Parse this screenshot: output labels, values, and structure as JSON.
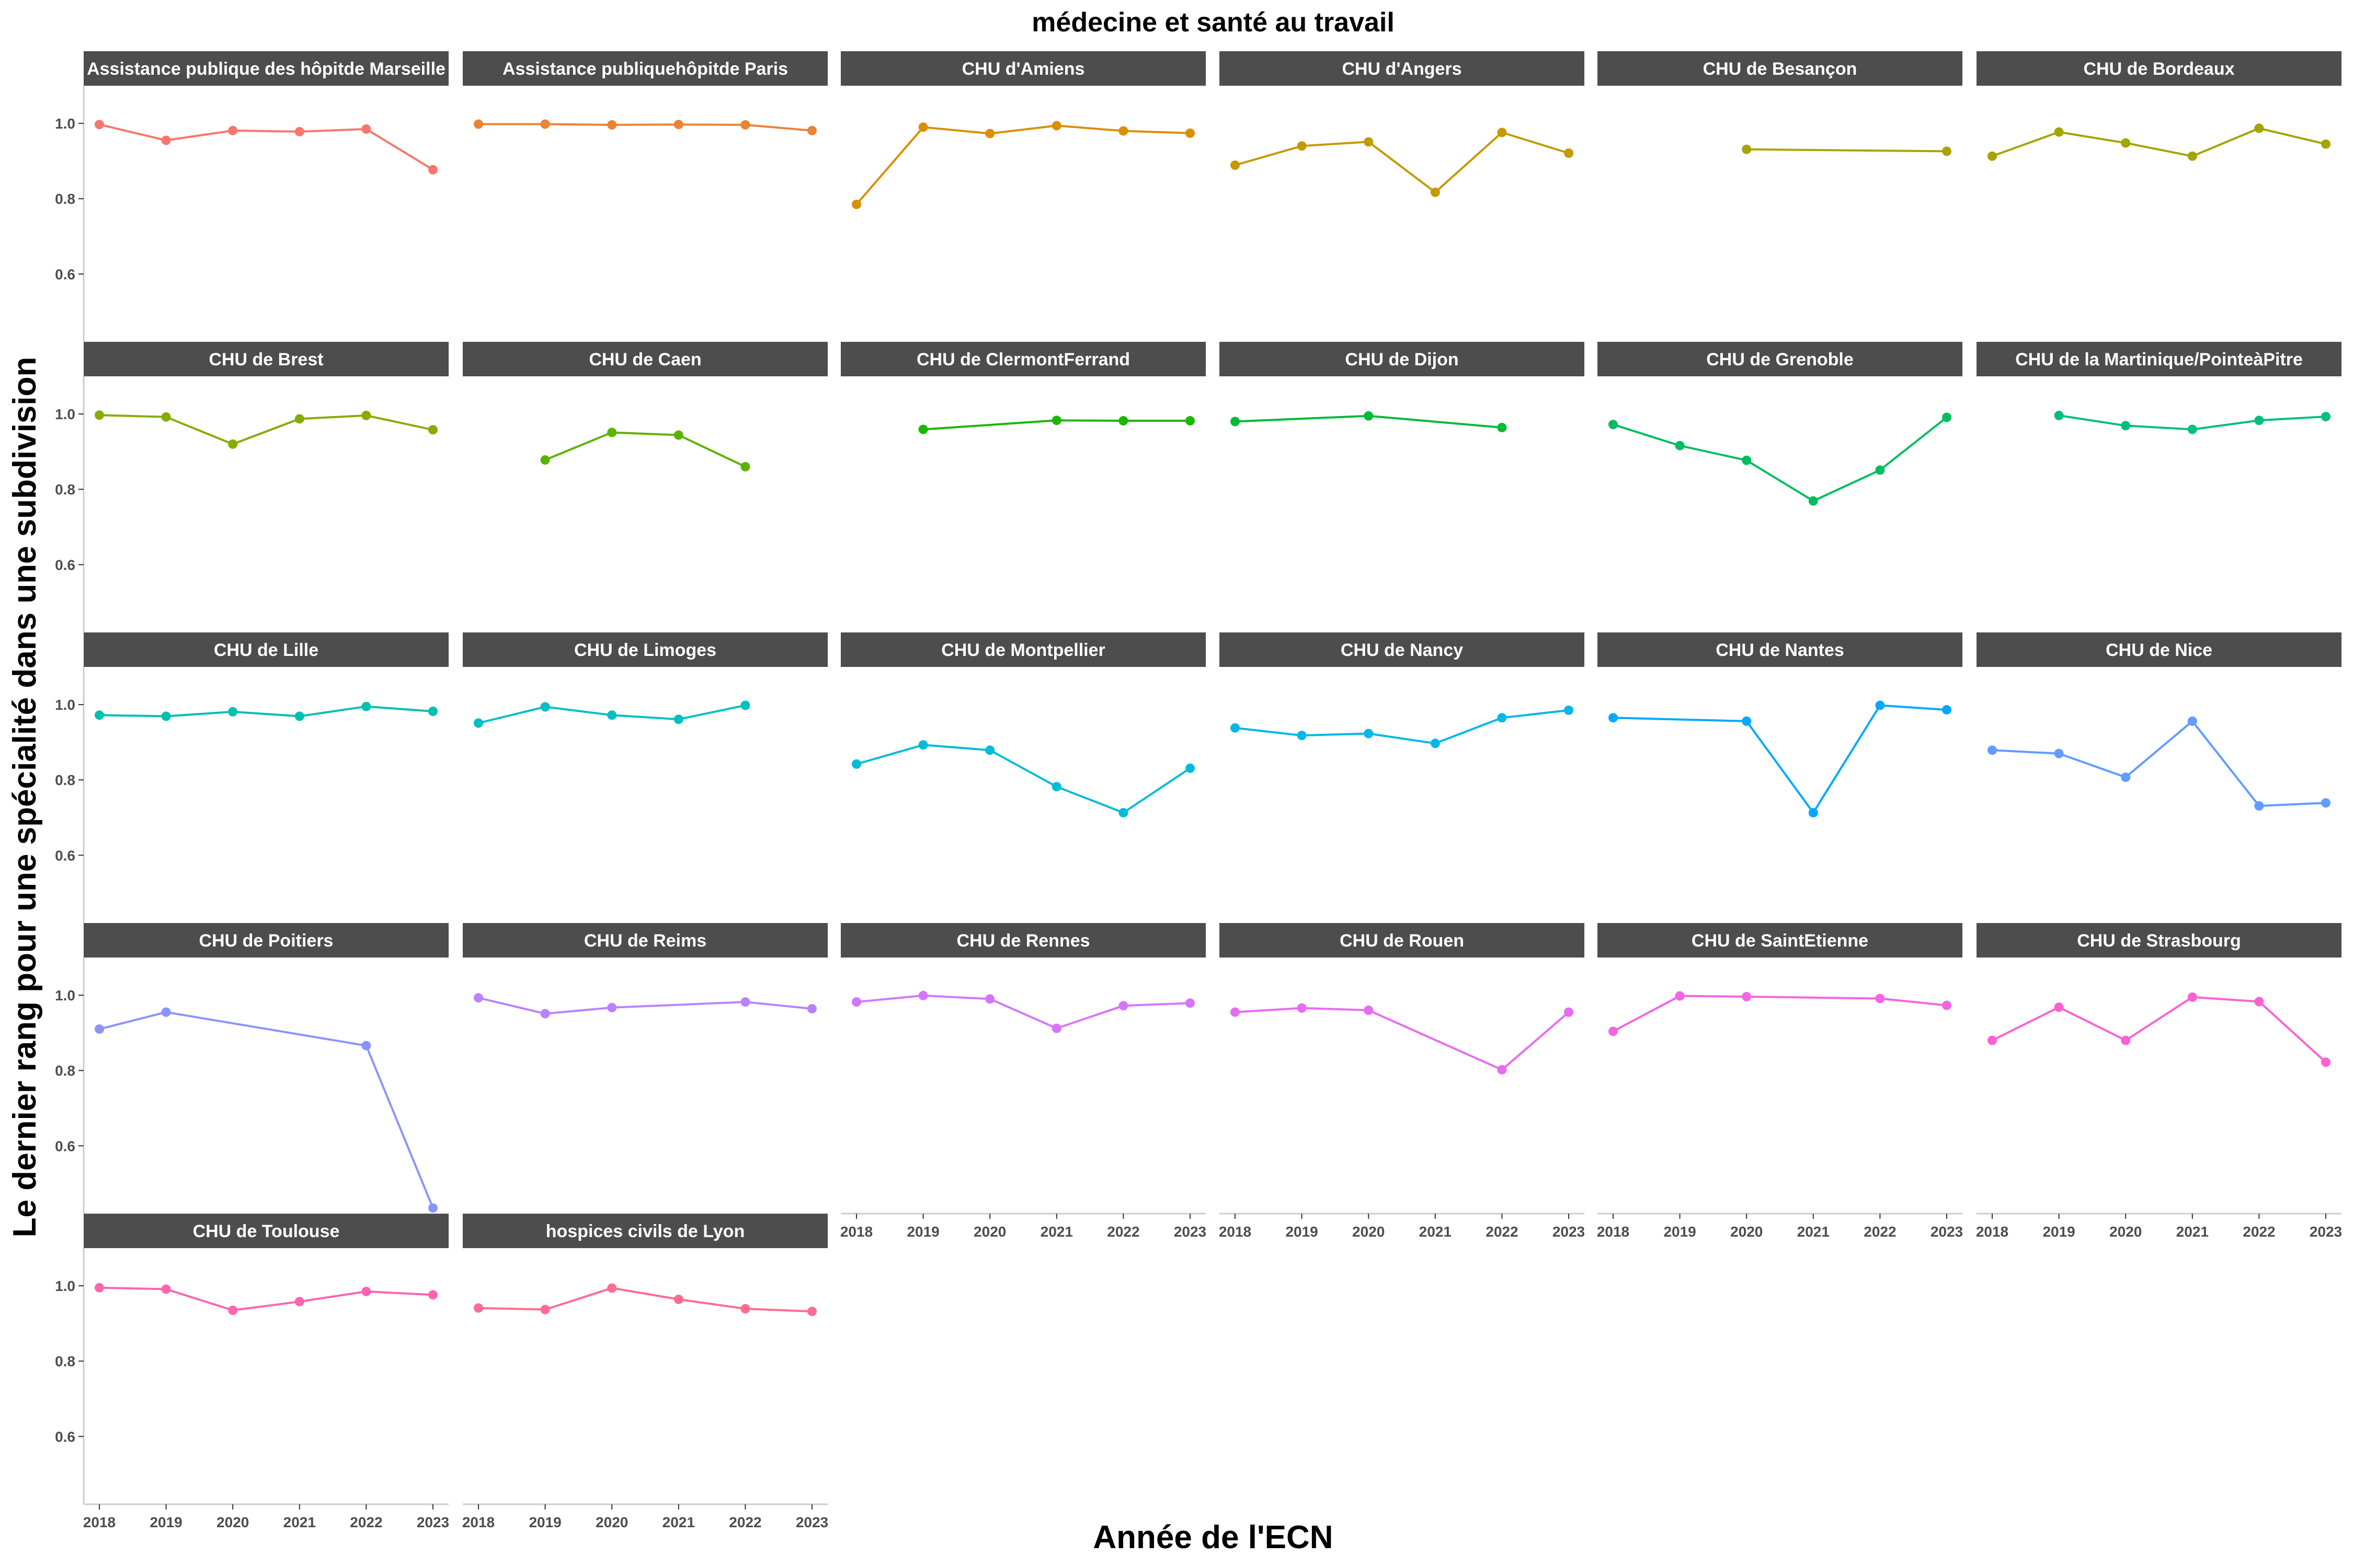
{
  "chart_data": {
    "type": "line",
    "title": "médecine et santé au travail",
    "xlabel": "Année de l'ECN",
    "ylabel": "Le dernier rang pour une spécialité dans une subdivision",
    "x": [
      2018,
      2019,
      2020,
      2021,
      2022,
      2023
    ],
    "ylim": [
      0.42,
      1.1
    ],
    "yticks": [
      0.6,
      0.8,
      1.0
    ],
    "ytick_labels": [
      "0.6",
      "0.8",
      "1.0"
    ],
    "grid": false,
    "legend": "none",
    "panels": [
      {
        "name": "Assistance publique des hôpitde Marseille",
        "color": "#F8766D",
        "values": [
          0.997,
          0.955,
          0.981,
          0.978,
          0.985,
          0.877
        ]
      },
      {
        "name": "Assistance publiquehôpitde Paris",
        "color": "#EB8335",
        "values": [
          0.998,
          0.998,
          0.996,
          0.997,
          0.996,
          0.981
        ]
      },
      {
        "name": "CHU d'Amiens",
        "color": "#DA8F00",
        "values": [
          0.785,
          0.99,
          0.973,
          0.994,
          0.98,
          0.974
        ]
      },
      {
        "name": "CHU d'Angers",
        "color": "#C49A00",
        "values": [
          0.889,
          0.94,
          0.951,
          0.817,
          0.976,
          0.921
        ]
      },
      {
        "name": "CHU de Besançon",
        "color": "#A9A400",
        "values": [
          null,
          null,
          0.931,
          null,
          null,
          0.926
        ]
      },
      {
        "name": "CHU de Bordeaux",
        "color": "#A3A500",
        "values": [
          0.913,
          0.977,
          0.948,
          0.913,
          0.987,
          0.945
        ]
      },
      {
        "name": "CHU de Brest",
        "color": "#86AC00",
        "values": [
          0.997,
          0.992,
          0.92,
          0.987,
          0.996,
          0.958
        ]
      },
      {
        "name": "CHU de Caen",
        "color": "#5BB300",
        "values": [
          null,
          0.878,
          0.951,
          0.944,
          0.86,
          null
        ]
      },
      {
        "name": "CHU de ClermontFerrand",
        "color": "#1AB700",
        "values": [
          null,
          0.959,
          null,
          0.983,
          0.982,
          0.982
        ]
      },
      {
        "name": "CHU de Dijon",
        "color": "#00BA38",
        "values": [
          0.98,
          null,
          0.995,
          null,
          0.964,
          null
        ]
      },
      {
        "name": "CHU de Grenoble",
        "color": "#00BD5F",
        "values": [
          0.972,
          0.916,
          0.877,
          0.769,
          0.851,
          0.991
        ]
      },
      {
        "name": "CHU de la Martinique/PointeàPitre",
        "color": "#00BF7D",
        "values": [
          null,
          0.996,
          0.969,
          0.959,
          0.983,
          0.993
        ]
      },
      {
        "name": "CHU de Lille",
        "color": "#00C0AF",
        "values": [
          0.972,
          0.969,
          0.981,
          0.969,
          0.995,
          0.982
        ]
      },
      {
        "name": "CHU de Limoges",
        "color": "#00BFC4",
        "values": [
          0.951,
          0.994,
          0.972,
          0.961,
          0.998,
          null
        ]
      },
      {
        "name": "CHU de Montpellier",
        "color": "#00BCD8",
        "values": [
          0.842,
          0.893,
          0.879,
          0.782,
          0.713,
          0.831
        ]
      },
      {
        "name": "CHU de Nancy",
        "color": "#00B8E7",
        "values": [
          0.938,
          0.918,
          0.923,
          0.897,
          0.965,
          0.985
        ]
      },
      {
        "name": "CHU de Nantes",
        "color": "#00A9FF",
        "values": [
          0.965,
          null,
          0.956,
          0.713,
          0.998,
          0.986
        ]
      },
      {
        "name": "CHU de Nice",
        "color": "#619CFF",
        "values": [
          0.879,
          0.87,
          0.807,
          0.956,
          0.731,
          0.739
        ]
      },
      {
        "name": "CHU de Poitiers",
        "color": "#8B93FF",
        "values": [
          0.91,
          0.955,
          null,
          null,
          0.866,
          0.435
        ]
      },
      {
        "name": "CHU de Reims",
        "color": "#B983FF",
        "values": [
          0.993,
          0.951,
          0.967,
          null,
          0.982,
          0.964
        ]
      },
      {
        "name": "CHU de Rennes",
        "color": "#D575FE",
        "values": [
          0.982,
          0.999,
          0.99,
          0.912,
          0.972,
          0.979
        ]
      },
      {
        "name": "CHU de Rouen",
        "color": "#E76BF3",
        "values": [
          0.955,
          0.966,
          0.96,
          null,
          0.802,
          0.955
        ]
      },
      {
        "name": "CHU de SaintEtienne",
        "color": "#F564E3",
        "values": [
          0.904,
          0.998,
          0.996,
          null,
          0.991,
          0.973
        ]
      },
      {
        "name": "CHU de Strasbourg",
        "color": "#FD61D1",
        "values": [
          0.88,
          0.968,
          0.88,
          0.995,
          0.983,
          0.822
        ]
      },
      {
        "name": "CHU de Toulouse",
        "color": "#FF64B0",
        "values": [
          0.995,
          0.991,
          0.935,
          0.958,
          0.985,
          0.976
        ]
      },
      {
        "name": "hospices civils de Lyon",
        "color": "#FF6C91",
        "values": [
          0.941,
          0.937,
          0.994,
          0.964,
          0.939,
          0.932
        ]
      }
    ]
  }
}
